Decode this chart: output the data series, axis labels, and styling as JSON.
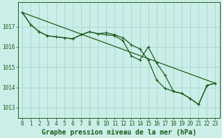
{
  "xlabel": "Graphe pression niveau de la mer (hPa)",
  "background_color": "#cceee8",
  "grid_color": "#aad8d2",
  "line_color": "#1a5c1a",
  "xlim": [
    -0.5,
    23.5
  ],
  "ylim": [
    1012.5,
    1018.2
  ],
  "yticks": [
    1013,
    1014,
    1015,
    1016,
    1017
  ],
  "xticks": [
    0,
    1,
    2,
    3,
    4,
    5,
    6,
    7,
    8,
    9,
    10,
    11,
    12,
    13,
    14,
    15,
    16,
    17,
    18,
    19,
    20,
    21,
    22,
    23
  ],
  "trend_x": [
    0,
    23
  ],
  "trend_y": [
    1017.7,
    1014.2
  ],
  "series1_x": [
    0,
    1,
    2,
    3,
    4,
    5,
    6,
    7,
    8,
    9,
    10,
    11,
    12,
    13,
    14,
    15,
    16,
    17,
    18,
    19,
    20,
    21,
    22,
    23
  ],
  "series1_y": [
    1017.7,
    1017.1,
    1016.75,
    1016.55,
    1016.5,
    1016.45,
    1016.4,
    1016.6,
    1016.75,
    1016.65,
    1016.7,
    1016.6,
    1016.45,
    1016.1,
    1015.9,
    1015.35,
    1014.35,
    1013.95,
    1013.8,
    1013.7,
    1013.45,
    1013.15,
    1014.1,
    1014.2
  ],
  "series2_x": [
    0,
    1,
    2,
    3,
    4,
    5,
    6,
    7,
    8,
    9,
    10,
    11,
    12,
    13,
    14,
    15,
    16,
    17,
    18,
    19,
    20,
    21,
    22,
    23
  ],
  "series2_y": [
    1017.7,
    1017.1,
    1016.75,
    1016.55,
    1016.5,
    1016.45,
    1016.4,
    1016.6,
    1016.75,
    1016.65,
    1016.6,
    1016.55,
    1016.3,
    1015.55,
    1015.35,
    1016.0,
    1015.2,
    1014.6,
    1013.8,
    1013.7,
    1013.45,
    1013.15,
    1014.1,
    1014.2
  ],
  "xlabel_fontsize": 7,
  "tick_fontsize": 5.5
}
